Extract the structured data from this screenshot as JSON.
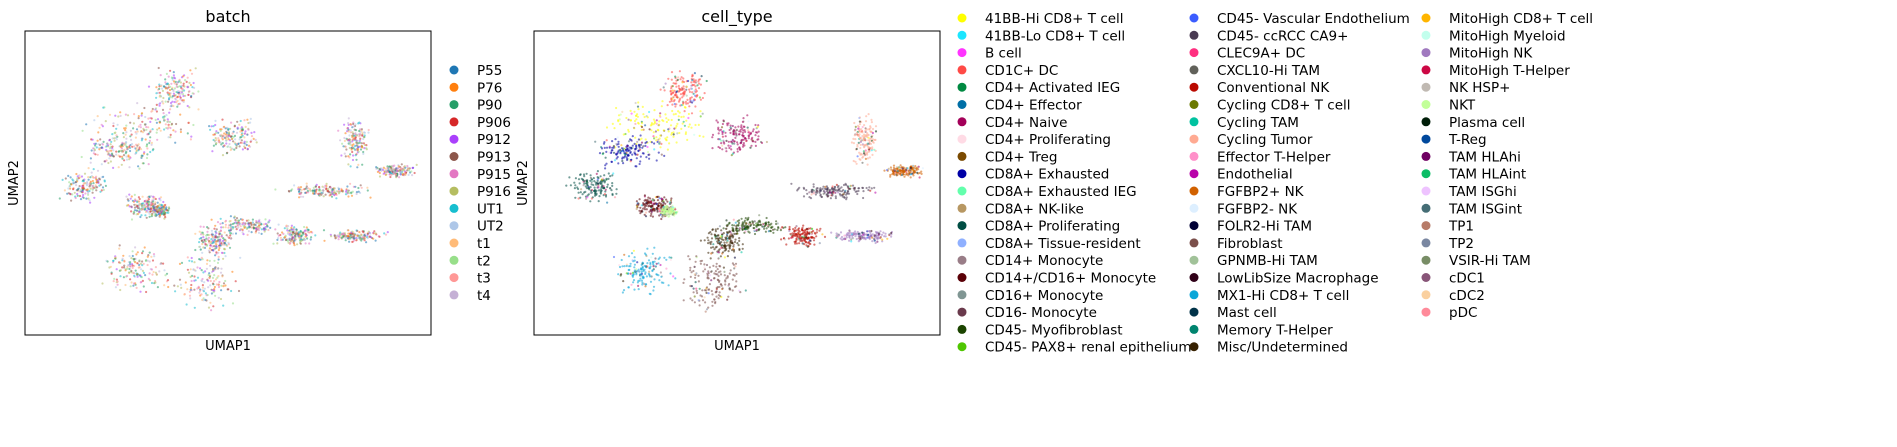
{
  "chart_data": [
    {
      "type": "scatter",
      "title": "batch",
      "xlabel": "UMAP1",
      "ylabel": "UMAP2",
      "grid": false,
      "ticks": false,
      "legend_placement": "right",
      "legend_columns": 1,
      "series": [
        {
          "name": "P55",
          "color": "#1f77b4"
        },
        {
          "name": "P76",
          "color": "#ff7f0e"
        },
        {
          "name": "P90",
          "color": "#279e68"
        },
        {
          "name": "P906",
          "color": "#d62728"
        },
        {
          "name": "P912",
          "color": "#aa40fc"
        },
        {
          "name": "P913",
          "color": "#8c564b"
        },
        {
          "name": "P915",
          "color": "#e377c2"
        },
        {
          "name": "P916",
          "color": "#b5bd61"
        },
        {
          "name": "UT1",
          "color": "#17becf"
        },
        {
          "name": "UT2",
          "color": "#aec7e8"
        },
        {
          "name": "t1",
          "color": "#ffbb78"
        },
        {
          "name": "t2",
          "color": "#98df8a"
        },
        {
          "name": "t3",
          "color": "#ff9896"
        },
        {
          "name": "t4",
          "color": "#c5b0d5"
        }
      ]
    },
    {
      "type": "scatter",
      "title": "cell_type",
      "xlabel": "UMAP1",
      "ylabel": "UMAP2",
      "grid": false,
      "ticks": false,
      "legend_placement": "right",
      "legend_columns": 3,
      "series": [
        {
          "name": "41BB-Hi CD8+ T cell",
          "color": "#ffff00"
        },
        {
          "name": "41BB-Lo CD8+ T cell",
          "color": "#1ce6ff"
        },
        {
          "name": "B cell",
          "color": "#ff34ff"
        },
        {
          "name": "CD1C+ DC",
          "color": "#ff4a46"
        },
        {
          "name": "CD4+ Activated IEG",
          "color": "#008941"
        },
        {
          "name": "CD4+ Effector",
          "color": "#006fa6"
        },
        {
          "name": "CD4+ Naive",
          "color": "#a30059"
        },
        {
          "name": "CD4+ Proliferating",
          "color": "#ffdbe5"
        },
        {
          "name": "CD4+ Treg",
          "color": "#7a4900"
        },
        {
          "name": "CD8A+ Exhausted",
          "color": "#0000a6"
        },
        {
          "name": "CD8A+ Exhausted IEG",
          "color": "#63ffac"
        },
        {
          "name": "CD8A+ NK-like",
          "color": "#b79762"
        },
        {
          "name": "CD8A+ Proliferating",
          "color": "#004d43"
        },
        {
          "name": "CD8A+ Tissue-resident",
          "color": "#8fb0ff"
        },
        {
          "name": "CD14+ Monocyte",
          "color": "#997d87"
        },
        {
          "name": "CD14+/CD16+ Monocyte",
          "color": "#5a0007"
        },
        {
          "name": "CD16+ Monocyte",
          "color": "#809693"
        },
        {
          "name": "CD16- Monocyte",
          "color": "#6a3a4c"
        },
        {
          "name": "CD45- Myofibroblast",
          "color": "#1b4400"
        },
        {
          "name": "CD45- PAX8+ renal epithelium",
          "color": "#4fc601"
        },
        {
          "name": "CD45- Vascular Endothelium",
          "color": "#3b5dff"
        },
        {
          "name": "CD45- ccRCC CA9+",
          "color": "#4a3b53"
        },
        {
          "name": "CLEC9A+ DC",
          "color": "#ff2f80"
        },
        {
          "name": "CXCL10-Hi TAM",
          "color": "#61615a"
        },
        {
          "name": "Conventional NK",
          "color": "#ba0900"
        },
        {
          "name": "Cycling CD8+ T cell",
          "color": "#6b7900"
        },
        {
          "name": "Cycling TAM",
          "color": "#00c2a0"
        },
        {
          "name": "Cycling Tumor",
          "color": "#ffaa92"
        },
        {
          "name": "Effector T-Helper",
          "color": "#ff90c9"
        },
        {
          "name": "Endothelial",
          "color": "#b903aa"
        },
        {
          "name": "FGFBP2+ NK",
          "color": "#d16100"
        },
        {
          "name": "FGFBP2- NK",
          "color": "#ddefff"
        },
        {
          "name": "FOLR2-Hi TAM",
          "color": "#000035"
        },
        {
          "name": "Fibroblast",
          "color": "#7b4f4b"
        },
        {
          "name": "GPNMB-Hi TAM",
          "color": "#a1c299"
        },
        {
          "name": "LowLibSize Macrophage",
          "color": "#300018"
        },
        {
          "name": "MX1-Hi CD8+ T cell",
          "color": "#0aa6d8"
        },
        {
          "name": "Mast cell",
          "color": "#013349"
        },
        {
          "name": "Memory T-Helper",
          "color": "#00846f"
        },
        {
          "name": "Misc/Undetermined",
          "color": "#372101"
        },
        {
          "name": "MitoHigh CD8+ T cell",
          "color": "#ffb500"
        },
        {
          "name": "MitoHigh Myeloid",
          "color": "#c2ffed"
        },
        {
          "name": "MitoHigh NK",
          "color": "#a079bf"
        },
        {
          "name": "MitoHigh T-Helper",
          "color": "#cc0744"
        },
        {
          "name": "NK HSP+",
          "color": "#c0b9b2"
        },
        {
          "name": "NKT",
          "color": "#c2ff99"
        },
        {
          "name": "Plasma cell",
          "color": "#001e09"
        },
        {
          "name": "T-Reg",
          "color": "#00489c"
        },
        {
          "name": "TAM HLAhi",
          "color": "#6f0062"
        },
        {
          "name": "TAM HLAint",
          "color": "#0cbd66"
        },
        {
          "name": "TAM ISGhi",
          "color": "#eec3ff"
        },
        {
          "name": "TAM ISGint",
          "color": "#456d75"
        },
        {
          "name": "TP1",
          "color": "#b77b68"
        },
        {
          "name": "TP2",
          "color": "#7a87a1"
        },
        {
          "name": "VSIR-Hi TAM",
          "color": "#788d66"
        },
        {
          "name": "cDC1",
          "color": "#885578"
        },
        {
          "name": "cDC2",
          "color": "#fad09f"
        },
        {
          "name": "pDC",
          "color": "#ff8a9a"
        }
      ]
    }
  ]
}
